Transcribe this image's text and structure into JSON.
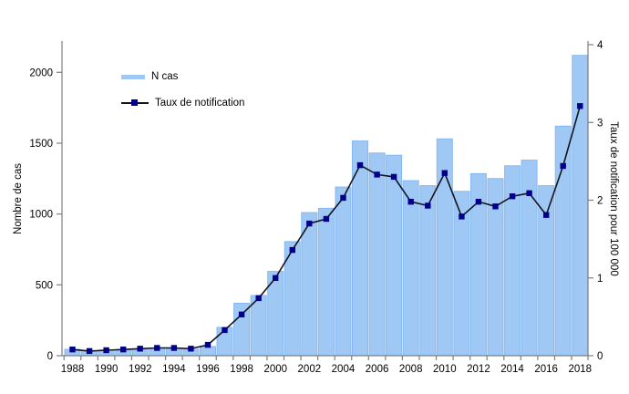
{
  "chart_data": {
    "type": "bar",
    "combo": "bar+line dual axis",
    "categories": [
      1988,
      1989,
      1990,
      1991,
      1992,
      1993,
      1994,
      1995,
      1996,
      1997,
      1998,
      1999,
      2000,
      2001,
      2002,
      2003,
      2004,
      2005,
      2006,
      2007,
      2008,
      2009,
      2010,
      2011,
      2012,
      2013,
      2014,
      2015,
      2016,
      2017,
      2018
    ],
    "series": [
      {
        "name": "N cas",
        "type": "bar",
        "axis": "left",
        "values": [
          45,
          35,
          40,
          40,
          45,
          55,
          50,
          45,
          65,
          200,
          370,
          425,
          595,
          805,
          1010,
          1040,
          1190,
          1515,
          1430,
          1415,
          1235,
          1200,
          1530,
          1160,
          1285,
          1250,
          1340,
          1380,
          1200,
          1620,
          2120
        ]
      },
      {
        "name": "Taux de notification",
        "type": "line",
        "axis": "right",
        "values": [
          0.08,
          0.06,
          0.07,
          0.08,
          0.09,
          0.1,
          0.1,
          0.09,
          0.14,
          0.33,
          0.53,
          0.74,
          1.0,
          1.36,
          1.7,
          1.76,
          2.03,
          2.45,
          2.33,
          2.3,
          1.98,
          1.93,
          2.35,
          1.79,
          1.98,
          1.92,
          2.05,
          2.09,
          1.81,
          2.44,
          3.21
        ]
      }
    ],
    "title": "",
    "xlabel": "",
    "left_axis": {
      "label": "Nombre de cas",
      "ticks": [
        0,
        500,
        1000,
        1500,
        2000
      ],
      "max": 2150
    },
    "right_axis": {
      "label": "Taux de notification pour 100 000",
      "ticks": [
        0,
        1,
        2,
        3,
        4
      ],
      "max": 4
    },
    "x_tick_labels": [
      "1988",
      "1990",
      "1992",
      "1994",
      "1996",
      "1998",
      "2000",
      "2002",
      "2004",
      "2006",
      "2008",
      "2010",
      "2012",
      "2014",
      "2016",
      "2018"
    ],
    "grid": "off",
    "legend_position": "inside top-left",
    "colors": {
      "bar_fill": "#9FC8F5",
      "bar_border": "#86B8EF",
      "line": "#14141E",
      "marker": "#00008B",
      "axis": "#7F7F7F",
      "text": "#000000",
      "background": "#FFFFFF"
    }
  }
}
